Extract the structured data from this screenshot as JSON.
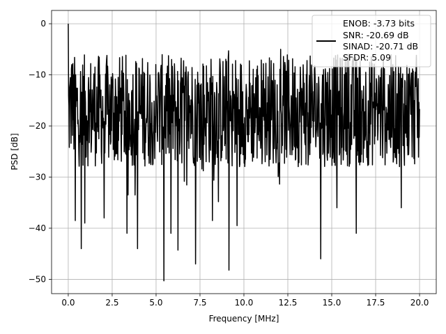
{
  "chart_data": {
    "type": "line",
    "title": "",
    "xlabel": "Frequency [MHz]",
    "ylabel": "PSD [dB]",
    "xlim": [
      -0.95,
      20.95
    ],
    "ylim": [
      -52.8,
      2.6
    ],
    "xticks": [
      0.0,
      2.5,
      5.0,
      7.5,
      10.0,
      12.5,
      15.0,
      17.5,
      20.0
    ],
    "xtick_labels": [
      "0.0",
      "2.5",
      "5.0",
      "7.5",
      "10.0",
      "12.5",
      "15.0",
      "17.5",
      "20.0"
    ],
    "yticks": [
      0,
      -10,
      -20,
      -30,
      -40,
      -50
    ],
    "ytick_labels": [
      "0",
      "−10",
      "−20",
      "−30",
      "−40",
      "−50"
    ],
    "grid": true,
    "legend_position": "upper right",
    "series": [
      {
        "color": "#000000",
        "description": "noise-like spectrum, 0 to 20 MHz",
        "n_points": 1000,
        "baseline_db": -17,
        "typical_range_db": [
          -28,
          -8
        ],
        "peaks": [
          {
            "x": 0.0,
            "y": 0.0
          },
          {
            "x": 0.05,
            "y": -16
          },
          {
            "x": 0.2,
            "y": -8
          },
          {
            "x": 9.12,
            "y": -5.3
          },
          {
            "x": 12.1,
            "y": -5.0
          },
          {
            "x": 15.95,
            "y": -6.0
          }
        ],
        "dips": [
          {
            "x": 0.4,
            "y": -38.5
          },
          {
            "x": 0.75,
            "y": -44
          },
          {
            "x": 0.95,
            "y": -39
          },
          {
            "x": 2.05,
            "y": -38
          },
          {
            "x": 3.35,
            "y": -41
          },
          {
            "x": 3.95,
            "y": -44
          },
          {
            "x": 5.45,
            "y": -50.3
          },
          {
            "x": 5.85,
            "y": -41
          },
          {
            "x": 6.25,
            "y": -44.3
          },
          {
            "x": 7.25,
            "y": -47
          },
          {
            "x": 8.2,
            "y": -38.5
          },
          {
            "x": 9.15,
            "y": -48.2
          },
          {
            "x": 9.6,
            "y": -39.5
          },
          {
            "x": 14.38,
            "y": -46
          },
          {
            "x": 15.3,
            "y": -36
          },
          {
            "x": 16.4,
            "y": -41
          },
          {
            "x": 18.95,
            "y": -36
          }
        ]
      }
    ],
    "legend_text": [
      "ENOB: -3.73 bits",
      "SNR: -20.69 dB",
      "SINAD: -20.71 dB",
      "SFDR: 5.09"
    ]
  }
}
